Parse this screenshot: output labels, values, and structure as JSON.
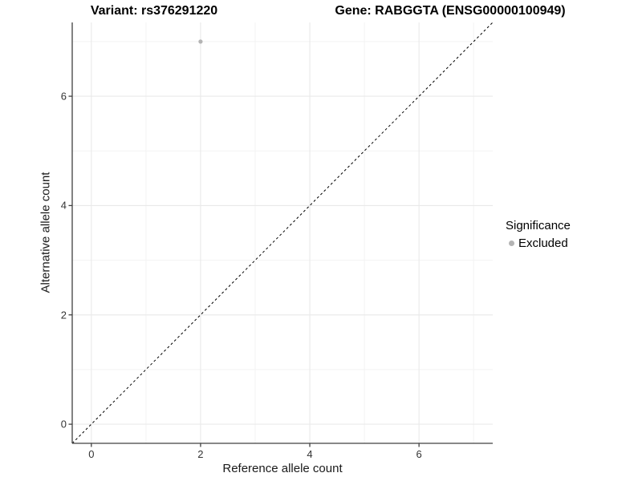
{
  "chart_data": {
    "type": "scatter",
    "title_left": "Variant: rs376291220",
    "title_right": "Gene: RABGGTA (ENSG00000100949)",
    "xlabel": "Reference allele count",
    "ylabel": "Alternative allele count",
    "xlim": [
      -0.35,
      7.35
    ],
    "ylim": [
      -0.35,
      7.35
    ],
    "x_ticks": [
      0,
      2,
      4,
      6
    ],
    "x_tick_labels": [
      "0",
      "2",
      "4",
      "6"
    ],
    "y_ticks": [
      0,
      2,
      4,
      6
    ],
    "y_tick_labels": [
      "0",
      "2",
      "4",
      "6"
    ],
    "minor_breaks": [
      1,
      3,
      5,
      7
    ],
    "grid": true,
    "points": [
      {
        "x": 2,
        "y": 7,
        "series": "Excluded"
      }
    ],
    "identity_line": {
      "style": "dashed",
      "from": [
        -0.35,
        -0.35
      ],
      "to": [
        7.35,
        7.35
      ]
    },
    "legend": {
      "position": "right",
      "title": "Significance",
      "entries": [
        {
          "label": "Excluded",
          "color": "#b4b4b4"
        }
      ]
    }
  },
  "colors": {
    "background": "#ffffff",
    "point": "#b4b4b4",
    "grid_major": "#e9e9e9",
    "grid_minor": "#f3f3f3",
    "axis_line": "#404040",
    "tick_mark": "#404040",
    "dashed_line": "#000000",
    "text": "#000000"
  }
}
